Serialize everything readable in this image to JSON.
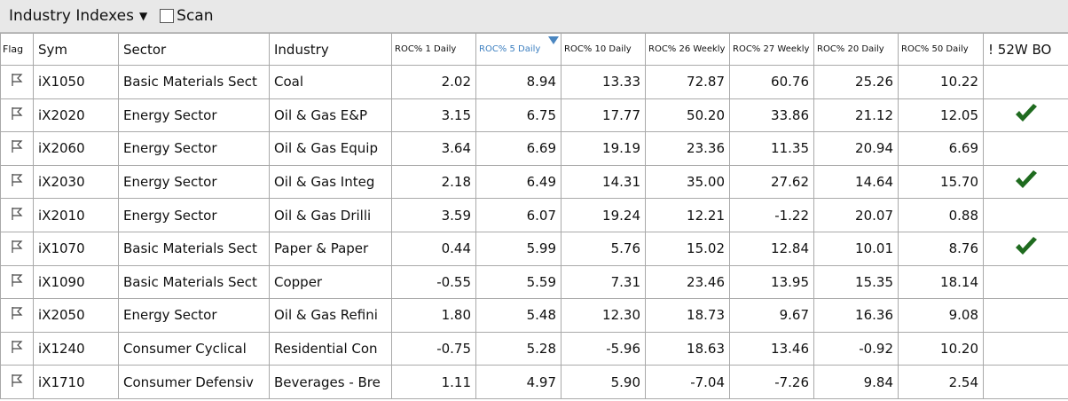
{
  "header": {
    "title": "Industry Indexes",
    "scan_label": "Scan"
  },
  "table": {
    "columns": [
      "Flag",
      "Sym",
      "Sector",
      "Industry",
      "ROC% 1 Daily",
      "ROC% 5 Daily",
      "ROC% 10 Daily",
      "ROC% 26 Weekly",
      "ROC% 27 Weekly",
      "ROC% 20 Daily",
      "ROC% 50 Daily",
      "! 52W BO"
    ],
    "sorted_column": 5,
    "rows": [
      {
        "cells": [
          "iX1050",
          "Basic Materials Sect",
          "Coal",
          "2.02",
          "8.94",
          "13.33",
          "72.87",
          "60.76",
          "25.26",
          "10.22"
        ],
        "breakout": false
      },
      {
        "cells": [
          "iX2020",
          "Energy Sector",
          "Oil & Gas E&P",
          "3.15",
          "6.75",
          "17.77",
          "50.20",
          "33.86",
          "21.12",
          "12.05"
        ],
        "breakout": true
      },
      {
        "cells": [
          "iX2060",
          "Energy Sector",
          "Oil & Gas Equip",
          "3.64",
          "6.69",
          "19.19",
          "23.36",
          "11.35",
          "20.94",
          "6.69"
        ],
        "breakout": false
      },
      {
        "cells": [
          "iX2030",
          "Energy Sector",
          "Oil & Gas Integ",
          "2.18",
          "6.49",
          "14.31",
          "35.00",
          "27.62",
          "14.64",
          "15.70"
        ],
        "breakout": true
      },
      {
        "cells": [
          "iX2010",
          "Energy Sector",
          "Oil & Gas Drilli",
          "3.59",
          "6.07",
          "19.24",
          "12.21",
          "-1.22",
          "20.07",
          "0.88"
        ],
        "breakout": false
      },
      {
        "cells": [
          "iX1070",
          "Basic Materials Sect",
          "Paper & Paper",
          "0.44",
          "5.99",
          "5.76",
          "15.02",
          "12.84",
          "10.01",
          "8.76"
        ],
        "breakout": true
      },
      {
        "cells": [
          "iX1090",
          "Basic Materials Sect",
          "Copper",
          "-0.55",
          "5.59",
          "7.31",
          "23.46",
          "13.95",
          "15.35",
          "18.14"
        ],
        "breakout": false
      },
      {
        "cells": [
          "iX2050",
          "Energy Sector",
          "Oil & Gas Refini",
          "1.80",
          "5.48",
          "12.30",
          "18.73",
          "9.67",
          "16.36",
          "9.08"
        ],
        "breakout": false
      },
      {
        "cells": [
          "iX1240",
          "Consumer Cyclical",
          "Residential Con",
          "-0.75",
          "5.28",
          "-5.96",
          "18.63",
          "13.46",
          "-0.92",
          "10.20"
        ],
        "breakout": false
      },
      {
        "cells": [
          "iX1710",
          "Consumer Defensiv",
          "Beverages - Bre",
          "1.11",
          "4.97",
          "5.90",
          "-7.04",
          "-7.26",
          "9.84",
          "2.54"
        ],
        "breakout": false
      }
    ]
  }
}
